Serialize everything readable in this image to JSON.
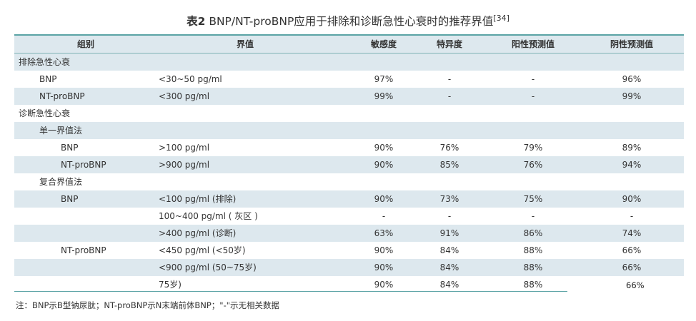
{
  "title": {
    "label": "表2",
    "text": "BNP/NT-proBNP应用于排除和诊断急性心衰时的推荐界值",
    "ref": "[34]"
  },
  "headers": {
    "group": "组别",
    "cutoff": "界值",
    "sens": "敏感度",
    "spec": "特异度",
    "ppv": "阳性预测值",
    "npv": "阴性预测值"
  },
  "rows": [
    {
      "group": "排除急性心衰",
      "indent": 0,
      "cutoff": "",
      "sens": "",
      "spec": "",
      "ppv": "",
      "npv": ""
    },
    {
      "group": "BNP",
      "indent": 1,
      "cutoff": "<30~50 pg/ml",
      "sens": "97%",
      "spec": "-",
      "ppv": "-",
      "npv": "96%"
    },
    {
      "group": "NT-proBNP",
      "indent": 1,
      "cutoff": "<300 pg/ml",
      "sens": "99%",
      "spec": "-",
      "ppv": "-",
      "npv": "99%"
    },
    {
      "group": "诊断急性心衰",
      "indent": 0,
      "cutoff": "",
      "sens": "",
      "spec": "",
      "ppv": "",
      "npv": ""
    },
    {
      "group": "单一界值法",
      "indent": 1,
      "cutoff": "",
      "sens": "",
      "spec": "",
      "ppv": "",
      "npv": ""
    },
    {
      "group": "BNP",
      "indent": 2,
      "cutoff": ">100 pg/ml",
      "sens": "90%",
      "spec": "76%",
      "ppv": "79%",
      "npv": "89%"
    },
    {
      "group": "NT-proBNP",
      "indent": 2,
      "cutoff": ">900 pg/ml",
      "sens": "90%",
      "spec": "85%",
      "ppv": "76%",
      "npv": "94%"
    },
    {
      "group": "复合界值法",
      "indent": 1,
      "cutoff": "",
      "sens": "",
      "spec": "",
      "ppv": "",
      "npv": ""
    },
    {
      "group": "BNP",
      "indent": 2,
      "cutoff": "<100 pg/ml (排除)",
      "sens": "90%",
      "spec": "73%",
      "ppv": "75%",
      "npv": "90%"
    },
    {
      "group": "",
      "indent": 2,
      "cutoff": "100~400 pg/ml ( 灰区 )",
      "sens": "-",
      "spec": "-",
      "ppv": "-",
      "npv": "-"
    },
    {
      "group": "",
      "indent": 2,
      "cutoff": ">400 pg/ml (诊断)",
      "sens": "63%",
      "spec": "91%",
      "ppv": "86%",
      "npv": "74%"
    },
    {
      "group": "NT-proBNP",
      "indent": 2,
      "cutoff": "<450 pg/ml (<50岁)",
      "sens": "90%",
      "spec": "84%",
      "ppv": "88%",
      "npv": "66%"
    },
    {
      "group": "",
      "indent": 2,
      "cutoff": "<900 pg/ml (50~75岁)",
      "sens": "90%",
      "spec": "84%",
      "ppv": "88%",
      "npv": "66%"
    },
    {
      "group": "",
      "indent": 2,
      "cutoff": "75岁)",
      "sens": "90%",
      "spec": "84%",
      "ppv": "88%",
      "npv": ""
    }
  ],
  "stray_value": "66%",
  "note": "注：BNP示B型钠尿肽；NT-proBNP示N末端前体BNP；\"-\"示无相关数据",
  "colors": {
    "rule": "#5aa3a5",
    "shade": "#dde8ee"
  }
}
